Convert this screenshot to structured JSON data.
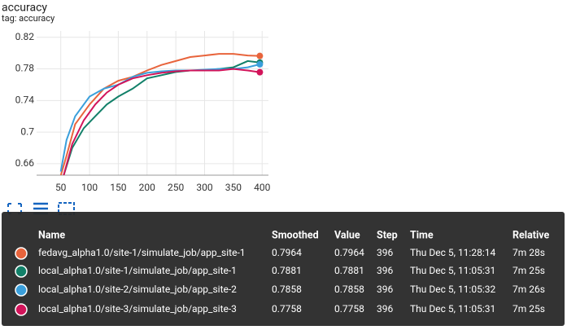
{
  "chart_data": {
    "type": "line",
    "title": "accuracy",
    "subtitle": "tag: accuracy",
    "xlim": [
      8,
      411
    ],
    "ylim": [
      0.6455,
      0.828
    ],
    "xticks": [
      50,
      100,
      150,
      200,
      250,
      300,
      350,
      400
    ],
    "yticks": [
      0.66,
      0.7,
      0.74,
      0.78,
      0.82
    ],
    "grid": true,
    "series": [
      {
        "name": "fedavg_alpha1.0/site-1/simulate_job/app_site-1",
        "color": "#e8643c",
        "x": [
          50,
          60,
          75,
          100,
          125,
          150,
          175,
          200,
          225,
          250,
          275,
          300,
          325,
          350,
          375,
          396
        ],
        "values": [
          0.645,
          0.67,
          0.71,
          0.735,
          0.755,
          0.765,
          0.77,
          0.778,
          0.785,
          0.79,
          0.795,
          0.797,
          0.799,
          0.799,
          0.797,
          0.7964
        ]
      },
      {
        "name": "local_alpha1.0/site-1/simulate_job/app_site-1",
        "color": "#128069",
        "x": [
          55,
          70,
          90,
          110,
          130,
          150,
          175,
          200,
          225,
          250,
          275,
          300,
          325,
          350,
          375,
          396
        ],
        "values": [
          0.645,
          0.68,
          0.705,
          0.72,
          0.735,
          0.745,
          0.755,
          0.768,
          0.772,
          0.776,
          0.778,
          0.778,
          0.78,
          0.782,
          0.79,
          0.7881
        ]
      },
      {
        "name": "local_alpha1.0/site-2/simulate_job/app_site-2",
        "color": "#3a9fdb",
        "x": [
          50,
          60,
          75,
          100,
          125,
          150,
          175,
          200,
          225,
          250,
          275,
          300,
          325,
          350,
          375,
          396
        ],
        "values": [
          0.65,
          0.69,
          0.72,
          0.745,
          0.755,
          0.76,
          0.77,
          0.775,
          0.777,
          0.778,
          0.778,
          0.779,
          0.78,
          0.78,
          0.782,
          0.7858
        ]
      },
      {
        "name": "local_alpha1.0/site-3/simulate_job/app_site-3",
        "color": "#d2145a",
        "x": [
          55,
          70,
          90,
          110,
          130,
          150,
          175,
          200,
          225,
          250,
          275,
          300,
          325,
          350,
          375,
          396
        ],
        "values": [
          0.645,
          0.685,
          0.715,
          0.735,
          0.75,
          0.76,
          0.768,
          0.772,
          0.775,
          0.777,
          0.778,
          0.778,
          0.778,
          0.78,
          0.778,
          0.7758
        ]
      }
    ]
  },
  "tooltip": {
    "headers": [
      "Name",
      "Smoothed",
      "Value",
      "Step",
      "Time",
      "Relative"
    ],
    "rows": [
      [
        "fedavg_alpha1.0/site-1/simulate_job/app_site-1",
        0.7964,
        0.7964,
        396,
        "Thu Dec 5, 11:28:14",
        "7m 28s"
      ],
      [
        "local_alpha1.0/site-1/simulate_job/app_site-1",
        0.7881,
        0.7881,
        396,
        "Thu Dec 5, 11:05:31",
        "7m 25s"
      ],
      [
        "local_alpha1.0/site-2/simulate_job/app_site-2",
        0.7858,
        0.7858,
        396,
        "Thu Dec 5, 11:05:32",
        "7m 26s"
      ],
      [
        "local_alpha1.0/site-3/simulate_job/app_site-3",
        0.7758,
        0.7758,
        396,
        "Thu Dec 5, 11:05:31",
        "7m 25s"
      ]
    ]
  }
}
